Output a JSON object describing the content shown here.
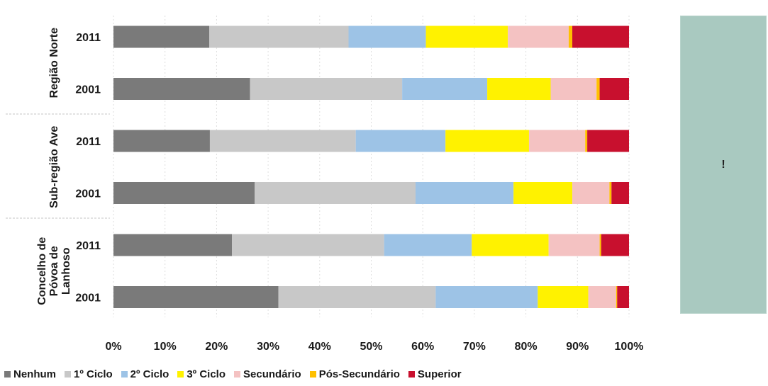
{
  "chart_data": {
    "type": "bar",
    "orientation": "horizontal",
    "stacked": "percent",
    "groups": [
      {
        "label": "Região Norte",
        "years": [
          "2011",
          "2001"
        ]
      },
      {
        "label": "Sub-região Ave",
        "years": [
          "2011",
          "2001"
        ]
      },
      {
        "label": "Concelho de Póvoa de Lanhoso",
        "label_lines": [
          "Concelho de",
          "Póvoa de",
          "Lanhoso"
        ],
        "years": [
          "2011",
          "2001"
        ]
      }
    ],
    "categories": [
      "Região Norte 2011",
      "Região Norte 2001",
      "Sub-região Ave 2011",
      "Sub-região Ave 2001",
      "Concelho de Póvoa de Lanhoso 2011",
      "Concelho de Póvoa de Lanhoso 2001"
    ],
    "series": [
      {
        "name": "Nenhum",
        "color": "#7a7a7a",
        "values": [
          18.6,
          26.5,
          18.7,
          27.4,
          23.0,
          32.0
        ]
      },
      {
        "name": "1º Ciclo",
        "color": "#c8c8c8",
        "values": [
          27.0,
          29.5,
          28.3,
          31.2,
          29.5,
          30.5
        ]
      },
      {
        "name": "2º Ciclo",
        "color": "#9dc3e6",
        "values": [
          15.0,
          16.5,
          17.4,
          19.0,
          17.0,
          19.8
        ]
      },
      {
        "name": "3º Ciclo",
        "color": "#fff200",
        "values": [
          15.9,
          12.3,
          16.2,
          11.4,
          14.9,
          9.8
        ]
      },
      {
        "name": "Secundário",
        "color": "#f4c2c2",
        "values": [
          11.8,
          8.9,
          10.9,
          7.2,
          9.9,
          5.4
        ]
      },
      {
        "name": "Pós-Secundário",
        "color": "#ffc000",
        "values": [
          0.7,
          0.6,
          0.4,
          0.4,
          0.3,
          0.2
        ]
      },
      {
        "name": "Superior",
        "color": "#c8102e",
        "values": [
          11.0,
          5.7,
          8.1,
          3.4,
          5.4,
          2.3
        ]
      }
    ],
    "xlim": [
      0,
      100
    ],
    "xticks": [
      "0%",
      "10%",
      "20%",
      "30%",
      "40%",
      "50%",
      "60%",
      "70%",
      "80%",
      "90%",
      "100%"
    ],
    "grid": true,
    "legend_position": "bottom"
  },
  "side_panel": {
    "color": "#a9c9c0",
    "mark": "!"
  }
}
